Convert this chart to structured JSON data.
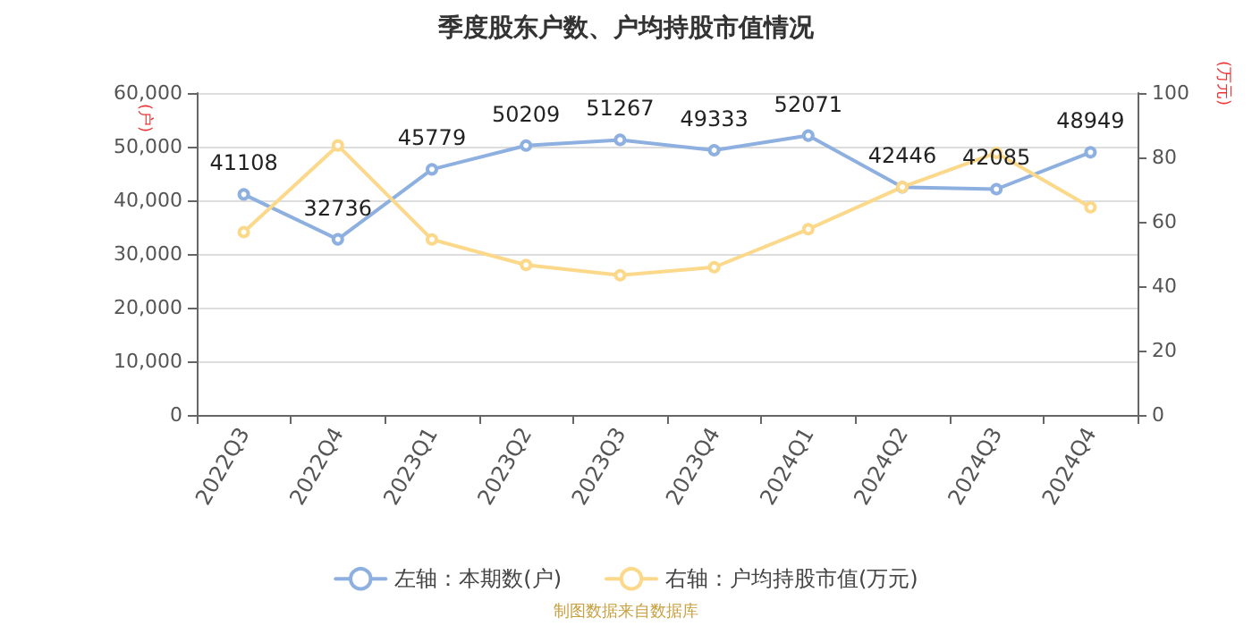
{
  "chart_data": {
    "type": "line",
    "title": "季度股东户数、户均持股市值情况",
    "ylabel": "(户)",
    "y2label": "(万元)",
    "categories": [
      "2022Q3",
      "2022Q4",
      "2023Q1",
      "2023Q2",
      "2023Q3",
      "2023Q4",
      "2024Q1",
      "2024Q2",
      "2024Q3",
      "2024Q4"
    ],
    "series": [
      {
        "name": "左轴：本期数(户)",
        "color": "#8eb0e0",
        "values": [
          41108,
          32736,
          45779,
          50209,
          51267,
          49333,
          52071,
          42446,
          42085,
          48949
        ],
        "value_labels": [
          "41108",
          "32736",
          "45779",
          "50209",
          "51267",
          "49333",
          "52071",
          "42446",
          "42085",
          "48949"
        ]
      },
      {
        "name": "右轴：户均持股市值(万元)",
        "color": "#fcd88a",
        "axis": "y2",
        "values": [
          56.8,
          83.7,
          54.5,
          46.6,
          43.4,
          45.9,
          57.7,
          70.8,
          81.4,
          64.5
        ]
      }
    ],
    "ylim": [
      0,
      60000
    ],
    "yticks": [
      {
        "value": 0,
        "label": "0"
      },
      {
        "value": 10000,
        "label": "10,000"
      },
      {
        "value": 20000,
        "label": "20,000"
      },
      {
        "value": 30000,
        "label": "30,000"
      },
      {
        "value": 40000,
        "label": "40,000"
      },
      {
        "value": 50000,
        "label": "50,000"
      },
      {
        "value": 60000,
        "label": "60,000"
      }
    ],
    "y2lim": [
      0,
      100
    ],
    "y2ticks": [
      0,
      20,
      40,
      60,
      80,
      100
    ],
    "grid": "y",
    "legend": "bottom",
    "marker": "circle",
    "line_style": "solid",
    "annotations": [
      "制图数据来自数据库"
    ]
  }
}
